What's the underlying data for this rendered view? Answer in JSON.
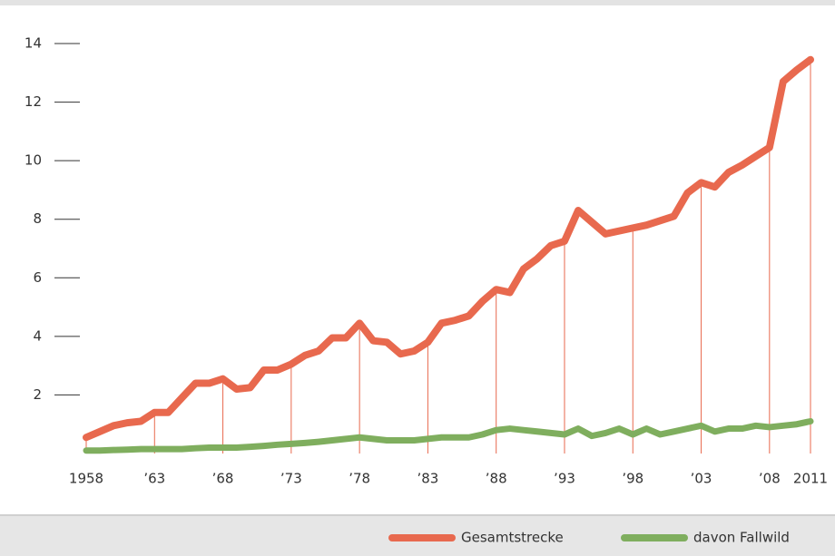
{
  "chart_data": {
    "type": "line",
    "x": [
      1958,
      1959,
      1960,
      1961,
      1962,
      1963,
      1964,
      1965,
      1966,
      1967,
      1968,
      1969,
      1970,
      1971,
      1972,
      1973,
      1974,
      1975,
      1976,
      1977,
      1978,
      1979,
      1980,
      1981,
      1982,
      1983,
      1984,
      1985,
      1986,
      1987,
      1988,
      1989,
      1990,
      1991,
      1992,
      1993,
      1994,
      1995,
      1996,
      1997,
      1998,
      1999,
      2000,
      2001,
      2002,
      2003,
      2004,
      2005,
      2006,
      2007,
      2008,
      2009,
      2010,
      2011
    ],
    "series": [
      {
        "name": "Gesamtstrecke",
        "color": "#e8694e",
        "values": [
          0.55,
          0.75,
          0.95,
          1.05,
          1.1,
          1.4,
          1.4,
          1.9,
          2.4,
          2.4,
          2.55,
          2.2,
          2.25,
          2.85,
          2.85,
          3.05,
          3.35,
          3.5,
          3.95,
          3.95,
          4.45,
          3.85,
          3.8,
          3.4,
          3.5,
          3.8,
          4.45,
          4.55,
          4.7,
          5.2,
          5.6,
          5.5,
          6.3,
          6.65,
          7.1,
          7.25,
          8.3,
          7.9,
          7.5,
          7.6,
          7.7,
          7.8,
          7.95,
          8.1,
          8.9,
          9.25,
          9.1,
          9.6,
          9.85,
          10.15,
          10.45,
          12.7,
          13.1,
          13.45
        ]
      },
      {
        "name": "davon Fallwild",
        "color": "#7fae5e",
        "values": [
          0.1,
          0.1,
          0.12,
          0.13,
          0.15,
          0.15,
          0.15,
          0.15,
          0.18,
          0.2,
          0.2,
          0.2,
          0.23,
          0.26,
          0.3,
          0.33,
          0.36,
          0.4,
          0.45,
          0.5,
          0.55,
          0.5,
          0.45,
          0.45,
          0.45,
          0.5,
          0.55,
          0.55,
          0.55,
          0.65,
          0.8,
          0.85,
          0.8,
          0.75,
          0.7,
          0.65,
          0.85,
          0.6,
          0.7,
          0.85,
          0.65,
          0.85,
          0.65,
          0.75,
          0.85,
          0.95,
          0.75,
          0.85,
          0.85,
          0.95,
          0.9,
          0.95,
          1.0,
          1.1
        ]
      }
    ],
    "xlim": [
      1958,
      2011
    ],
    "xticks": [
      1958,
      {
        "value": 1963,
        "label": "’63"
      },
      {
        "value": 1968,
        "label": "’68"
      },
      {
        "value": 1973,
        "label": "’73"
      },
      {
        "value": 1978,
        "label": "’78"
      },
      {
        "value": 1983,
        "label": "’83"
      },
      {
        "value": 1988,
        "label": "’88"
      },
      {
        "value": 1993,
        "label": "’93"
      },
      {
        "value": 1998,
        "label": "’98"
      },
      {
        "value": 2003,
        "label": "’03"
      },
      {
        "value": 2008,
        "label": "’08"
      },
      2011
    ],
    "ylim": [
      0,
      14
    ],
    "yticks": [
      2,
      4,
      6,
      8,
      10,
      12,
      14
    ]
  }
}
